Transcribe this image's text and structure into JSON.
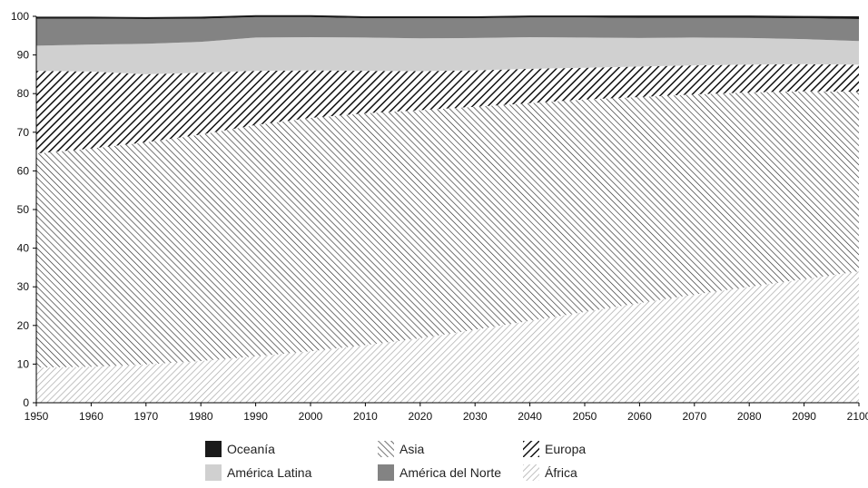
{
  "chart_data": {
    "type": "area",
    "stacked": true,
    "title": "",
    "xlabel": "",
    "ylabel": "",
    "x": [
      1950,
      1960,
      1970,
      1980,
      1990,
      2000,
      2010,
      2020,
      2030,
      2040,
      2050,
      2060,
      2070,
      2080,
      2090,
      2100
    ],
    "xlim": [
      1950,
      2100
    ],
    "ylim": [
      0,
      100
    ],
    "x_ticks": [
      "1950",
      "1960",
      "1970",
      "1980",
      "1990",
      "2000",
      "2010",
      "2020",
      "2030",
      "2040",
      "2050",
      "2060",
      "2070",
      "2080",
      "2090",
      "2100"
    ],
    "y_ticks": [
      "0",
      "10",
      "20",
      "30",
      "40",
      "50",
      "60",
      "70",
      "80",
      "90",
      "100"
    ],
    "grid": false,
    "legend_position": "bottom",
    "series": [
      {
        "name": "África",
        "pattern": "hatch-light-forward",
        "color": "#b0b0b0",
        "values": [
          9.1,
          9.3,
          9.9,
          10.8,
          12.0,
          13.3,
          14.9,
          16.7,
          18.9,
          21.2,
          23.5,
          25.8,
          28.0,
          30.0,
          32.0,
          34.0
        ]
      },
      {
        "name": "Asia",
        "pattern": "hatch-back",
        "color": "#333333",
        "values": [
          55.4,
          56.5,
          57.5,
          58.6,
          59.9,
          60.4,
          60.0,
          59.0,
          57.7,
          56.3,
          55.0,
          53.3,
          51.8,
          50.3,
          48.6,
          46.5
        ]
      },
      {
        "name": "Europa",
        "pattern": "hatch-heavy-forward",
        "color": "#111111",
        "values": [
          21.4,
          19.9,
          17.6,
          16.0,
          14.0,
          12.3,
          11.0,
          10.1,
          9.4,
          8.9,
          8.2,
          7.9,
          7.5,
          7.2,
          7.0,
          7.0
        ]
      },
      {
        "name": "América Latina",
        "pattern": "solid",
        "color": "#d0d0d0",
        "values": [
          6.5,
          7.0,
          7.9,
          8.0,
          8.6,
          8.6,
          8.6,
          8.5,
          8.4,
          8.2,
          7.8,
          7.4,
          7.2,
          6.9,
          6.5,
          6.1
        ]
      },
      {
        "name": "América del Norte",
        "pattern": "solid",
        "color": "#838383",
        "values": [
          7.0,
          6.7,
          6.4,
          6.0,
          5.3,
          5.2,
          5.0,
          5.2,
          5.1,
          5.1,
          5.2,
          5.2,
          5.1,
          5.2,
          5.4,
          5.7
        ]
      },
      {
        "name": "Oceanía",
        "pattern": "solid",
        "color": "#1a1a1a",
        "values": [
          0.5,
          0.5,
          0.5,
          0.5,
          0.5,
          0.5,
          0.5,
          0.5,
          0.5,
          0.5,
          0.5,
          0.6,
          0.6,
          0.6,
          0.6,
          0.7
        ]
      }
    ],
    "legend": [
      {
        "name": "Oceanía",
        "pattern": "solid",
        "color": "#1a1a1a"
      },
      {
        "name": "América Latina",
        "pattern": "solid",
        "color": "#d0d0d0"
      },
      {
        "name": "Asia",
        "pattern": "hatch-back",
        "color": "#333333"
      },
      {
        "name": "América del Norte",
        "pattern": "solid",
        "color": "#838383"
      },
      {
        "name": "Europa",
        "pattern": "hatch-heavy-forward",
        "color": "#111111"
      },
      {
        "name": "África",
        "pattern": "hatch-light-forward",
        "color": "#b0b0b0"
      }
    ]
  }
}
